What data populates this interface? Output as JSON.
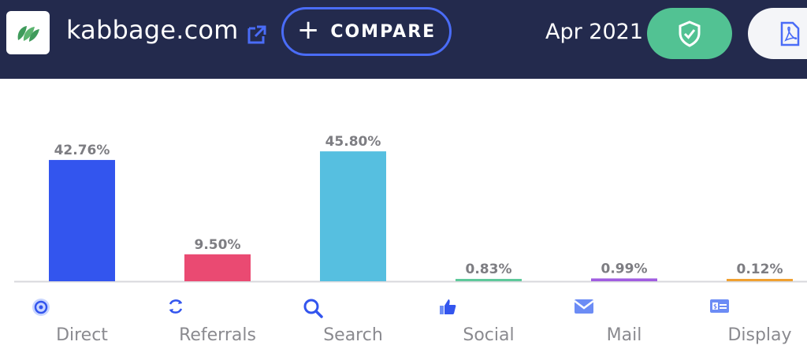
{
  "header": {
    "site_name": "kabbage.com",
    "compare_label": "COMPARE",
    "date": "Apr 2021",
    "icons": {
      "logo": "kabbage-leaf-logo",
      "external": "external-link-icon",
      "compare": "plus-icon",
      "shield": "shield-check-icon",
      "pdf": "pdf-icon"
    },
    "colors": {
      "bar_bg": "#232a4d",
      "accent": "#4a6cf7",
      "shield_bg": "#52c293"
    }
  },
  "chart_data": {
    "type": "bar",
    "categories": [
      "Direct",
      "Referrals",
      "Search",
      "Social",
      "Mail",
      "Display"
    ],
    "values": [
      42.76,
      9.5,
      45.8,
      0.83,
      0.99,
      0.12
    ],
    "value_labels": [
      "42.76%",
      "9.50%",
      "45.80%",
      "0.83%",
      "0.99%",
      "0.12%"
    ],
    "colors": [
      "#3355ee",
      "#ea4a72",
      "#56bfe0",
      "#5ec99b",
      "#a05ce0",
      "#f0a030"
    ],
    "icons": [
      "direct-icon",
      "referrals-icon",
      "search-icon",
      "social-icon",
      "mail-icon",
      "display-icon"
    ],
    "units": "%",
    "title": "",
    "xlabel": "",
    "ylabel": "",
    "grid": false
  }
}
